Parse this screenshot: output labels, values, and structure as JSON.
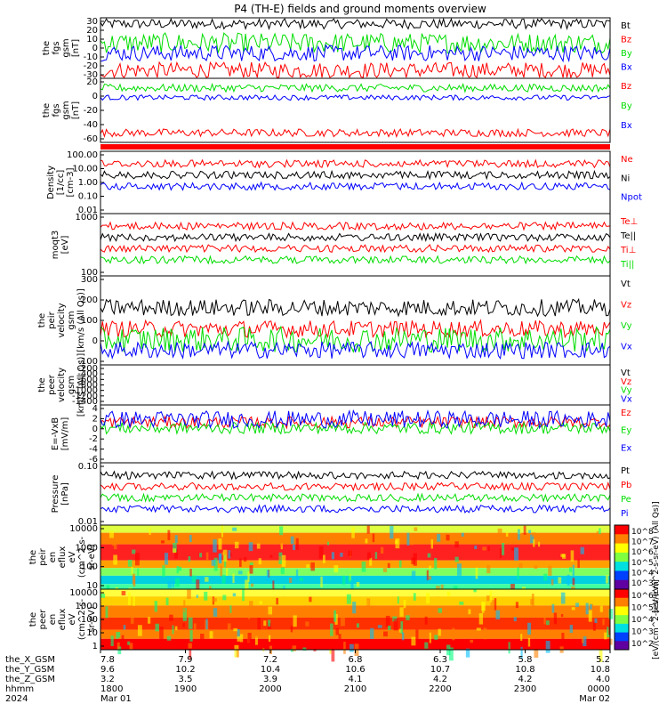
{
  "title": "P4 (TH-E) fields and ground moments overview",
  "colors": {
    "black": "#000000",
    "red": "#ff0000",
    "green": "#00dd00",
    "blue": "#0000ff"
  },
  "chart_data": [
    {
      "type": "line",
      "ylabel": [
        "the",
        "fgs",
        "gsm",
        "[nT]"
      ],
      "ylim": [
        -30,
        30
      ],
      "yticks": [
        "30",
        "20",
        "10",
        "0",
        "-10",
        "-20",
        "-30"
      ],
      "series": [
        {
          "name": "Bt",
          "color": "#000000",
          "level": 24,
          "amp": 5
        },
        {
          "name": "Bz",
          "color": "#ff0000",
          "level": -22,
          "amp": 8
        },
        {
          "name": "By",
          "color": "#00dd00",
          "level": 5,
          "amp": 10
        },
        {
          "name": "Bx",
          "color": "#0000ff",
          "level": -5,
          "amp": 8
        }
      ]
    },
    {
      "type": "line",
      "ylabel": [
        "the",
        "fgs",
        "gsm",
        "[nT]"
      ],
      "ylim": [
        -70,
        30
      ],
      "yticks": [
        "20",
        "0",
        "-20",
        "-40",
        "-60"
      ],
      "series": [
        {
          "name": "Bz",
          "color": "#ff0000",
          "level": -55,
          "amp": 6
        },
        {
          "name": "By",
          "color": "#00dd00",
          "level": 15,
          "amp": 6
        },
        {
          "name": "Bx",
          "color": "#0000ff",
          "level": 0,
          "amp": 4
        }
      ]
    },
    {
      "type": "line",
      "ylabel": [
        "Density",
        "[1/cc]",
        "[cm-3]"
      ],
      "scale": "log",
      "yticks": [
        "100.00",
        "10.00",
        "1.00",
        "0.10",
        "0.01"
      ],
      "series": [
        {
          "name": "Ne",
          "color": "#ff0000",
          "level": 5,
          "amp": 0.3
        },
        {
          "name": "Ni",
          "color": "#000000",
          "level": 5,
          "amp": 0.3
        },
        {
          "name": "Npot",
          "color": "#0000ff",
          "level": 5,
          "amp": 0.3
        }
      ]
    },
    {
      "type": "line",
      "ylabel": [
        "moqt3",
        "[eV]"
      ],
      "scale": "log",
      "yticks": [
        "1000",
        "100"
      ],
      "series": [
        {
          "name": "Te⊥",
          "color": "#ff0000",
          "level": 300,
          "amp": 0.3
        },
        {
          "name": "Te||",
          "color": "#000000",
          "level": 300,
          "amp": 0.3
        },
        {
          "name": "Ti⊥",
          "color": "#ff0000",
          "level": 3000,
          "amp": 0.3
        },
        {
          "name": "Ti||",
          "color": "#00dd00",
          "level": 3000,
          "amp": 0.3
        }
      ]
    },
    {
      "type": "line",
      "ylabel": [
        "the",
        "peir",
        "velocity",
        "gsm",
        "[km/s (All Qs)]"
      ],
      "ylim": [
        -120,
        300
      ],
      "yticks": [
        "300",
        "200",
        "100",
        "0",
        "-100"
      ],
      "series": [
        {
          "name": "Vt",
          "color": "#000000",
          "level": 150,
          "amp": 40
        },
        {
          "name": "Vz",
          "color": "#ff0000",
          "level": 50,
          "amp": 40
        },
        {
          "name": "Vy",
          "color": "#00dd00",
          "level": 0,
          "amp": 60
        },
        {
          "name": "Vx",
          "color": "#0000ff",
          "level": -50,
          "amp": 40
        }
      ]
    },
    {
      "type": "line",
      "ylabel": [
        "the",
        "peer",
        "velocity",
        "gsm",
        "[km/s (All Qs)]"
      ],
      "ylim": [
        -1400,
        0
      ],
      "yticks": [
        "-200",
        "-400",
        "-600",
        "-800",
        "-1000",
        "-1200",
        "-1400"
      ],
      "series": [
        {
          "name": "Vt",
          "color": "#000000"
        },
        {
          "name": "Vz",
          "color": "#ff0000"
        },
        {
          "name": "Vy",
          "color": "#00dd00"
        },
        {
          "name": "Vx",
          "color": "#0000ff"
        }
      ]
    },
    {
      "type": "line",
      "ylabel": [
        "E=-VxB",
        "[mV/m]"
      ],
      "ylim": [
        -6,
        4
      ],
      "yticks": [
        "4",
        "2",
        "0",
        "-2",
        "-4",
        "-6"
      ],
      "series": [
        {
          "name": "Ez",
          "color": "#ff0000",
          "level": 1,
          "amp": 1
        },
        {
          "name": "Ey",
          "color": "#00dd00",
          "level": 0,
          "amp": 1
        },
        {
          "name": "Ex",
          "color": "#0000ff",
          "level": 1.5,
          "amp": 1.5
        }
      ]
    },
    {
      "type": "line",
      "ylabel": [
        "Pressure",
        "[nPa]"
      ],
      "scale": "log",
      "yticks": [
        "0.10",
        "0.01"
      ],
      "series": [
        {
          "name": "Pt",
          "color": "#000000",
          "level": 0.5,
          "amp": 0.3
        },
        {
          "name": "Pb",
          "color": "#ff0000",
          "level": 0.3,
          "amp": 0.3
        },
        {
          "name": "Pe",
          "color": "#00dd00",
          "level": 0.03,
          "amp": 0.3
        },
        {
          "name": "Pi",
          "color": "#0000ff",
          "level": 0.2,
          "amp": 0.3
        }
      ]
    },
    {
      "type": "heatmap",
      "ylabel": [
        "the",
        "peir",
        "en",
        "eflux",
        "eV",
        "(cm^2-s-",
        "sr-eV)"
      ],
      "yticks": [
        "10000",
        "1000",
        "100",
        "10"
      ],
      "colorbar_label": "[eV/(cm^2-s-sr-eV) (All Qs)]",
      "colorbar_ticks": [
        "10^8",
        "10^7",
        "10^6",
        "10^5",
        "10^4",
        "10^3"
      ]
    },
    {
      "type": "heatmap",
      "ylabel": [
        "the",
        "peer",
        "en",
        "eflux",
        "eV",
        "(cm^2-s-",
        "sr-eV)"
      ],
      "yticks": [
        "10000",
        "1000",
        "100",
        "10",
        "1"
      ],
      "colorbar_label": "[eV/(cm^2-s-sr-eV)]",
      "colorbar_ticks": [
        "10^6",
        "10^5",
        "10^4",
        "10^3",
        "10^2"
      ]
    }
  ],
  "footer": {
    "row_labels": [
      "the_X_GSM",
      "the_Y_GSM",
      "the_Z_GSM",
      "hhmm",
      "2024"
    ],
    "columns": [
      {
        "x": "7.8",
        "y": "9.6",
        "z": "3.2",
        "hhmm": "1800",
        "date": "Mar 01"
      },
      {
        "x": "7.9",
        "y": "10.2",
        "z": "3.5",
        "hhmm": "1900",
        "date": ""
      },
      {
        "x": "7.2",
        "y": "10.4",
        "z": "3.9",
        "hhmm": "2000",
        "date": ""
      },
      {
        "x": "6.8",
        "y": "10.6",
        "z": "4.1",
        "hhmm": "2100",
        "date": ""
      },
      {
        "x": "6.3",
        "y": "10.7",
        "z": "4.2",
        "hhmm": "2200",
        "date": ""
      },
      {
        "x": "5.8",
        "y": "10.8",
        "z": "4.2",
        "hhmm": "2300",
        "date": ""
      },
      {
        "x": "5.2",
        "y": "10.8",
        "z": "4.0",
        "hhmm": "0000",
        "date": "Mar 02"
      }
    ]
  }
}
